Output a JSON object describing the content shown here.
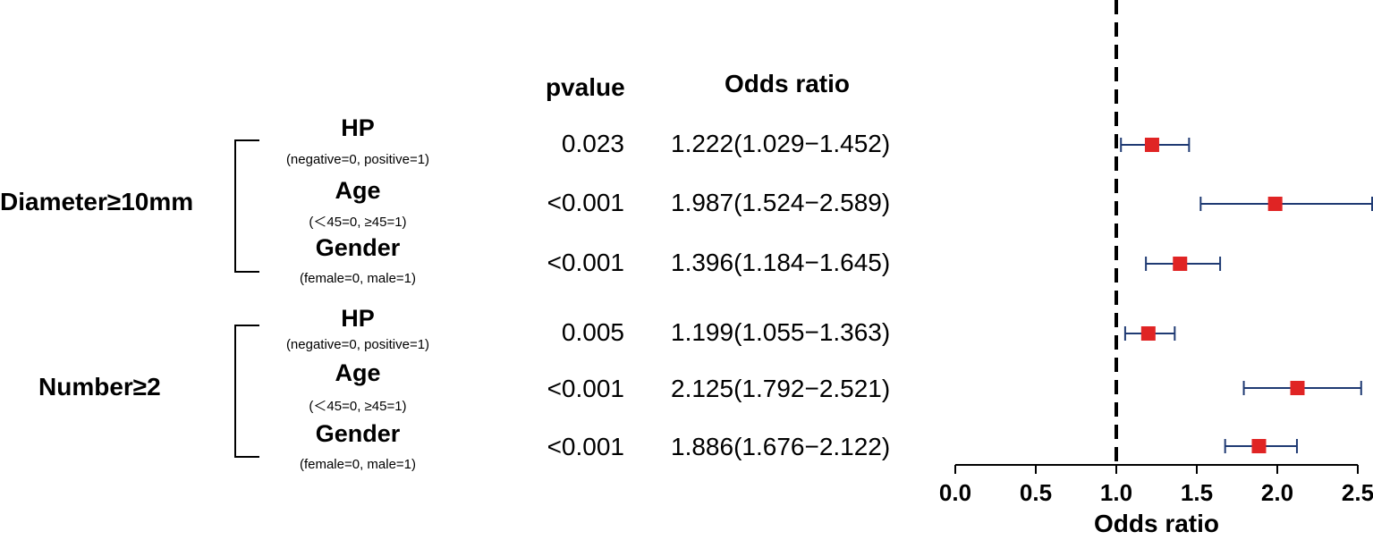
{
  "headers": {
    "pvalue": "pvalue",
    "odds_ratio": "Odds ratio"
  },
  "groups": [
    {
      "label": "Diameter≥10mm"
    },
    {
      "label": "Number≥2"
    }
  ],
  "rows": [
    {
      "variable": "HP",
      "coding": "(negative=0, positive=1)",
      "pvalue": "0.023",
      "or_text": "1.222(1.029−1.452)"
    },
    {
      "variable": "Age",
      "coding": "(＜45=0, ≥45=1)",
      "pvalue": "<0.001",
      "or_text": "1.987(1.524−2.589)"
    },
    {
      "variable": "Gender",
      "coding": "(female=0, male=1)",
      "pvalue": "<0.001",
      "or_text": "1.396(1.184−1.645)"
    },
    {
      "variable": "HP",
      "coding": "(negative=0, positive=1)",
      "pvalue": "0.005",
      "or_text": "1.199(1.055−1.363)"
    },
    {
      "variable": "Age",
      "coding": "(＜45=0, ≥45=1)",
      "pvalue": "<0.001",
      "or_text": "2.125(1.792−2.521)"
    },
    {
      "variable": "Gender",
      "coding": "(female=0, male=1)",
      "pvalue": "<0.001",
      "or_text": "1.886(1.676−2.122)"
    }
  ],
  "chart_data": {
    "type": "forest",
    "xlabel": "Odds ratio",
    "xlim": [
      0,
      2.5
    ],
    "xticks": [
      "0.0",
      "0.5",
      "1.0",
      "1.5",
      "2.0",
      "2.5"
    ],
    "reference_line": 1.0,
    "points": [
      {
        "or": 1.222,
        "low": 1.029,
        "high": 1.452
      },
      {
        "or": 1.987,
        "low": 1.524,
        "high": 2.589
      },
      {
        "or": 1.396,
        "low": 1.184,
        "high": 1.645
      },
      {
        "or": 1.199,
        "low": 1.055,
        "high": 1.363
      },
      {
        "or": 2.125,
        "low": 1.792,
        "high": 2.521
      },
      {
        "or": 1.886,
        "low": 1.676,
        "high": 2.122
      }
    ],
    "colors": {
      "marker": "#e02424",
      "ci": "#1f3a73",
      "axis": "#000000"
    }
  }
}
